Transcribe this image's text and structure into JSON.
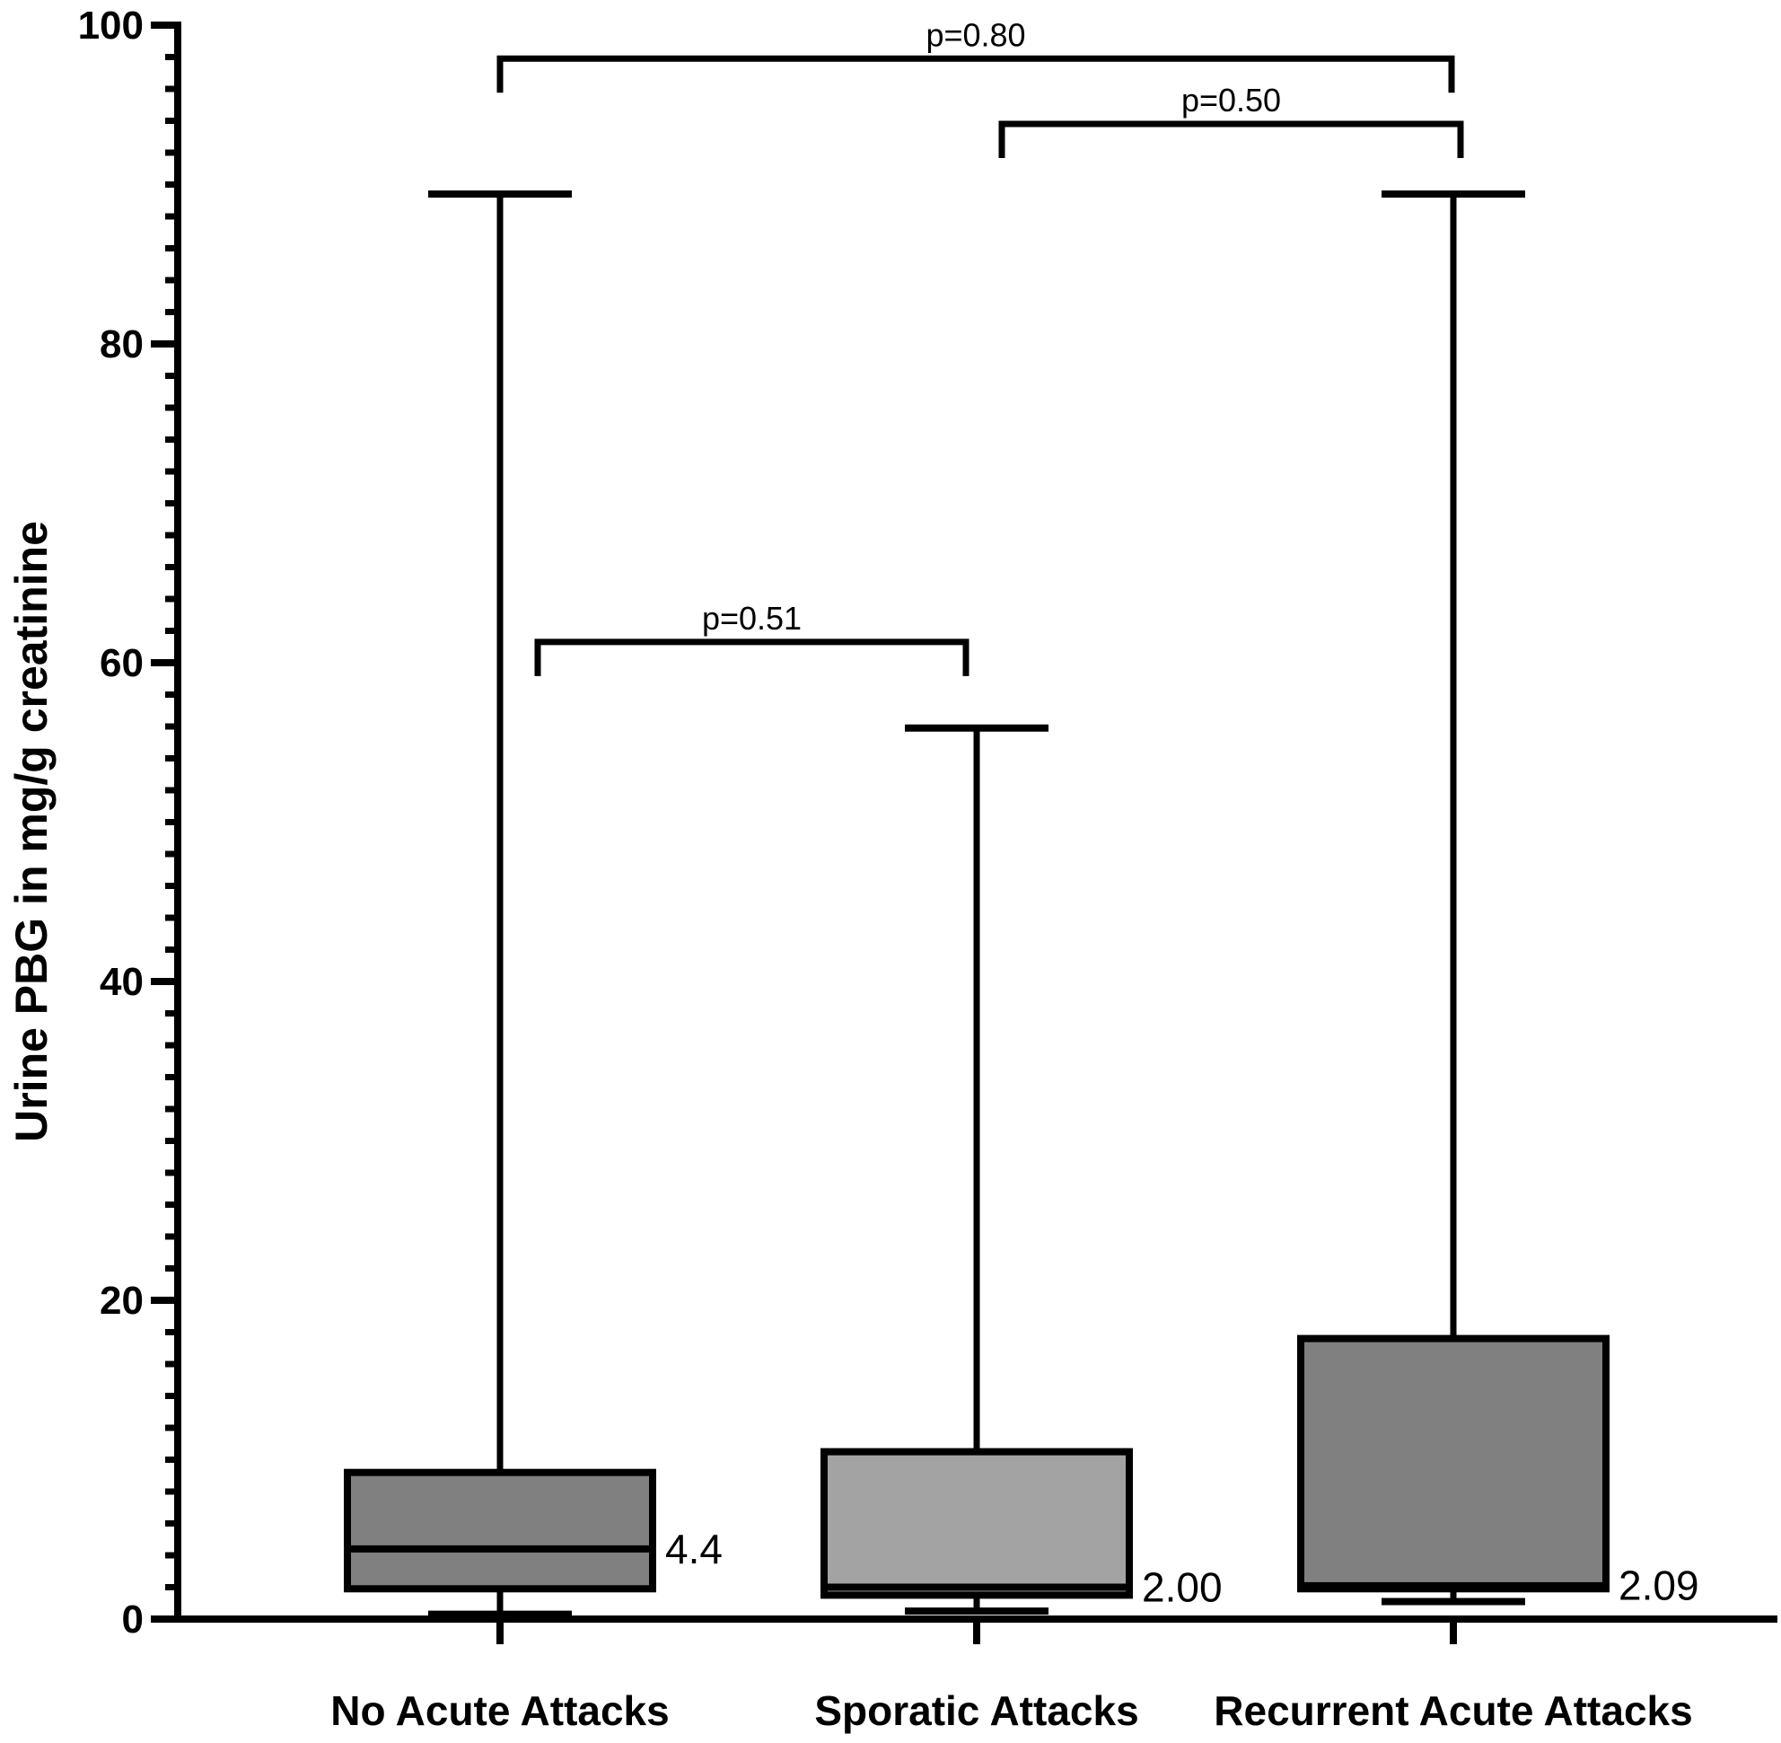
{
  "chart_data": {
    "type": "box",
    "ylabel": "Urine PBG in mg/g creatinine",
    "ylim": [
      0,
      100
    ],
    "yticks": [
      0,
      20,
      40,
      60,
      80,
      100
    ],
    "y_minor_step": 2,
    "grid": false,
    "categories": [
      "No Acute Attacks",
      "Sporatic Attacks",
      "Recurrent Acute Attacks"
    ],
    "boxes": [
      {
        "category": "No Acute Attacks",
        "min": 0.3,
        "q1": 1.9,
        "median": 4.4,
        "q3": 9.2,
        "max": 89.4,
        "median_label": "4.4",
        "color": "#808080"
      },
      {
        "category": "Sporatic Attacks",
        "min": 0.5,
        "q1": 1.5,
        "median": 2.0,
        "q3": 10.5,
        "max": 55.9,
        "median_label": "2.00",
        "color": "#a3a3a3"
      },
      {
        "category": "Recurrent Acute Attacks",
        "min": 1.1,
        "q1": 1.9,
        "median": 2.09,
        "q3": 17.6,
        "max": 89.4,
        "median_label": "2.09",
        "color": "#808080"
      }
    ],
    "comparisons": [
      {
        "from": 0,
        "to": 1,
        "y": 61.3,
        "label": "p=0.51"
      },
      {
        "from": 1,
        "to": 2,
        "y": 93.8,
        "label": "p=0.50"
      },
      {
        "from": 0,
        "to": 2,
        "y": 97.9,
        "label": "p=0.80"
      }
    ]
  }
}
